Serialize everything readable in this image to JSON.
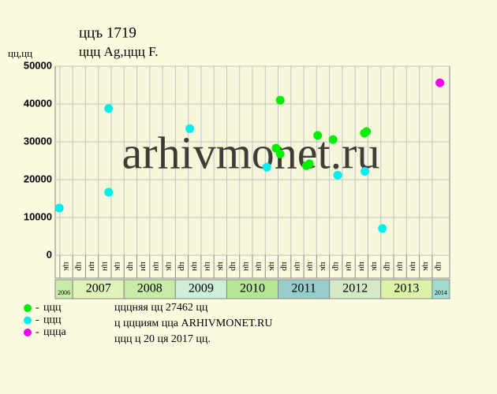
{
  "chart_data": {
    "type": "scatter",
    "title": "ццъ 1719",
    "subtitle": "ццц Ag,ццц F.",
    "y_label": "цц,цц",
    "watermark": "arhivmonet.ru",
    "xlim": [
      2006.66,
      2014.34
    ],
    "ylim": [
      0,
      50000
    ],
    "yticks": [
      0,
      10000,
      20000,
      30000,
      40000,
      50000
    ],
    "grid": true,
    "xticks": [
      {
        "value": 2006.875,
        "label": "цк"
      },
      {
        "value": 2007.125,
        "label": "цр"
      },
      {
        "value": 2007.375,
        "label": "цн"
      },
      {
        "value": 2007.625,
        "label": "цн"
      },
      {
        "value": 2007.875,
        "label": "цк"
      },
      {
        "value": 2008.125,
        "label": "цр"
      },
      {
        "value": 2008.375,
        "label": "цн"
      },
      {
        "value": 2008.625,
        "label": "цн"
      },
      {
        "value": 2008.875,
        "label": "цк"
      },
      {
        "value": 2009.125,
        "label": "цр"
      },
      {
        "value": 2009.375,
        "label": "цн"
      },
      {
        "value": 2009.625,
        "label": "цн"
      },
      {
        "value": 2009.875,
        "label": "цк"
      },
      {
        "value": 2010.125,
        "label": "цр"
      },
      {
        "value": 2010.375,
        "label": "цн"
      },
      {
        "value": 2010.625,
        "label": "цн"
      },
      {
        "value": 2010.875,
        "label": "цк"
      },
      {
        "value": 2011.125,
        "label": "цр"
      },
      {
        "value": 2011.375,
        "label": "цн"
      },
      {
        "value": 2011.625,
        "label": "цн"
      },
      {
        "value": 2011.875,
        "label": "цк"
      },
      {
        "value": 2012.125,
        "label": "цр"
      },
      {
        "value": 2012.375,
        "label": "цн"
      },
      {
        "value": 2012.625,
        "label": "цн"
      },
      {
        "value": 2012.875,
        "label": "цк"
      },
      {
        "value": 2013.125,
        "label": "цр"
      },
      {
        "value": 2013.375,
        "label": "цн"
      },
      {
        "value": 2013.625,
        "label": "цн"
      },
      {
        "value": 2013.875,
        "label": "цк"
      },
      {
        "value": 2014.125,
        "label": "цр"
      }
    ],
    "year_bands": [
      {
        "label": "2006",
        "start": 2006.66,
        "end": 2007,
        "color": "#c8eca8"
      },
      {
        "label": "2007",
        "start": 2007,
        "end": 2008,
        "color": "#e0f4b8"
      },
      {
        "label": "2008",
        "start": 2008,
        "end": 2009,
        "color": "#c8eca8"
      },
      {
        "label": "2009",
        "start": 2009,
        "end": 2010,
        "color": "#cdeed8"
      },
      {
        "label": "2010",
        "start": 2010,
        "end": 2011,
        "color": "#b4e896"
      },
      {
        "label": "2011",
        "start": 2011,
        "end": 2012,
        "color": "#98cccc"
      },
      {
        "label": "2012",
        "start": 2012,
        "end": 2013,
        "color": "#d4eac4"
      },
      {
        "label": "2013",
        "start": 2013,
        "end": 2014,
        "color": "#dcf2a8"
      },
      {
        "label": "2014",
        "start": 2014,
        "end": 2014.34,
        "color": "#a0dcd0"
      }
    ],
    "series": [
      {
        "name": "ццц",
        "color": "#00ee00",
        "x": [
          2011.04,
          2010.96,
          2011.04,
          2011.55,
          2011.61,
          2011.77,
          2012.07,
          2012.68,
          2012.72
        ],
        "values": [
          41000,
          28300,
          26800,
          23700,
          24200,
          31700,
          30600,
          32300,
          32700
        ]
      },
      {
        "name": "ццц",
        "color": "#00eeee",
        "x": [
          2006.74,
          2007.7,
          2007.7,
          2009.28,
          2010.78,
          2012.16,
          2012.69,
          2013.03
        ],
        "values": [
          12500,
          38800,
          16700,
          33500,
          23300,
          21200,
          22200,
          7100
        ]
      },
      {
        "name": "цццa",
        "color": "#ee00ee",
        "x": [
          2014.15
        ],
        "values": [
          45600
        ]
      }
    ],
    "notes": [
      "цццняя цц 27462 цц",
      "ц ццциям цца ARHIVMONET.RU",
      "ццц ц 20 ця 2017 цц."
    ]
  }
}
